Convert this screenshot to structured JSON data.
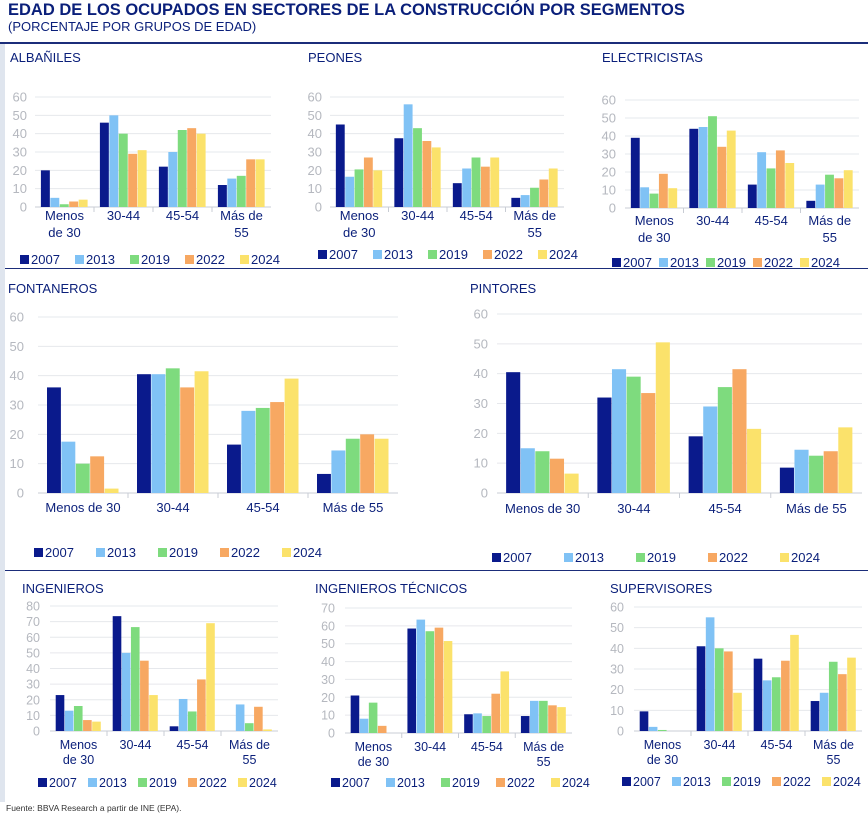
{
  "title": "EDAD DE LOS OCUPADOS EN SECTORES DE LA CONSTRUCCIÓN POR SEGMENTOS",
  "subtitle": "(PORCENTAJE POR GRUPOS DE EDAD)",
  "footer": "Fuente: BBVA Research a partir de INE (EPA).",
  "series_colors": {
    "2007": "#0a1a8c",
    "2013": "#80c2f5",
    "2019": "#7edb7e",
    "2022": "#f7a862",
    "2024": "#fbe26b"
  },
  "chart_data": [
    {
      "type": "bar",
      "title": "ALBAÑILES",
      "ylim": [
        0,
        60
      ],
      "yticks": [
        "0",
        "10",
        "20",
        "30",
        "40",
        "50",
        "60"
      ],
      "categories": [
        [
          "Menos",
          "de 30"
        ],
        [
          "30-44"
        ],
        [
          "45-54"
        ],
        [
          "Más de",
          "55"
        ]
      ],
      "series": [
        {
          "name": "2007",
          "values": [
            20,
            46,
            22,
            12
          ]
        },
        {
          "name": "2013",
          "values": [
            5,
            50,
            30,
            15.5
          ]
        },
        {
          "name": "2019",
          "values": [
            1.5,
            40,
            42,
            17
          ]
        },
        {
          "name": "2022",
          "values": [
            3,
            29,
            43,
            26
          ]
        },
        {
          "name": "2024",
          "values": [
            4,
            31,
            40,
            26
          ]
        }
      ]
    },
    {
      "type": "bar",
      "title": "PEONES",
      "ylim": [
        0,
        60
      ],
      "yticks": [
        "0",
        "10",
        "20",
        "30",
        "40",
        "50",
        "60"
      ],
      "categories": [
        [
          "Menos",
          "de 30"
        ],
        [
          "30-44"
        ],
        [
          "45-54"
        ],
        [
          "Más de",
          "55"
        ]
      ],
      "series": [
        {
          "name": "2007",
          "values": [
            45,
            37.5,
            13,
            5
          ]
        },
        {
          "name": "2013",
          "values": [
            16.5,
            56,
            21,
            6.5
          ]
        },
        {
          "name": "2019",
          "values": [
            20.5,
            43,
            27,
            10.5
          ]
        },
        {
          "name": "2022",
          "values": [
            27,
            36,
            22,
            15
          ]
        },
        {
          "name": "2024",
          "values": [
            20,
            32.5,
            27,
            21
          ]
        }
      ]
    },
    {
      "type": "bar",
      "title": "ELECTRICISTAS",
      "ylim": [
        0,
        60
      ],
      "yticks": [
        "0",
        "10",
        "20",
        "30",
        "40",
        "50",
        "60"
      ],
      "categories": [
        [
          "Menos",
          "de 30"
        ],
        [
          "30-44"
        ],
        [
          "45-54"
        ],
        [
          "Más de",
          "55"
        ]
      ],
      "series": [
        {
          "name": "2007",
          "values": [
            39,
            44,
            13,
            4
          ]
        },
        {
          "name": "2013",
          "values": [
            11.5,
            45,
            31,
            13
          ]
        },
        {
          "name": "2019",
          "values": [
            8,
            51,
            22,
            18.5
          ]
        },
        {
          "name": "2022",
          "values": [
            19,
            34,
            32,
            16.5
          ]
        },
        {
          "name": "2024",
          "values": [
            11,
            43,
            25,
            21
          ]
        }
      ]
    },
    {
      "type": "bar",
      "title": "FONTANEROS",
      "ylim": [
        0,
        60
      ],
      "yticks": [
        "0",
        "10",
        "20",
        "30",
        "40",
        "50",
        "60"
      ],
      "categories": [
        [
          "Menos de 30"
        ],
        [
          "30-44"
        ],
        [
          "45-54"
        ],
        [
          "Más de 55"
        ]
      ],
      "series": [
        {
          "name": "2007",
          "values": [
            36,
            40.5,
            16.5,
            6.5
          ]
        },
        {
          "name": "2013",
          "values": [
            17.5,
            40.5,
            28,
            14.5
          ]
        },
        {
          "name": "2019",
          "values": [
            10,
            42.5,
            29,
            18.5
          ]
        },
        {
          "name": "2022",
          "values": [
            12.5,
            36,
            31,
            20
          ]
        },
        {
          "name": "2024",
          "values": [
            1.5,
            41.5,
            39,
            18.5
          ]
        }
      ]
    },
    {
      "type": "bar",
      "title": "PINTORES",
      "ylim": [
        0,
        60
      ],
      "yticks": [
        "0",
        "10",
        "20",
        "30",
        "40",
        "50",
        "60"
      ],
      "categories": [
        [
          "Menos de 30"
        ],
        [
          "30-44"
        ],
        [
          "45-54"
        ],
        [
          "Más de 55"
        ]
      ],
      "series": [
        {
          "name": "2007",
          "values": [
            40.5,
            32,
            19,
            8.5
          ]
        },
        {
          "name": "2013",
          "values": [
            15,
            41.5,
            29,
            14.5
          ]
        },
        {
          "name": "2019",
          "values": [
            14,
            39,
            35.5,
            12.5
          ]
        },
        {
          "name": "2022",
          "values": [
            11.5,
            33.5,
            41.5,
            14
          ]
        },
        {
          "name": "2024",
          "values": [
            6.5,
            50.5,
            21.5,
            22
          ]
        }
      ]
    },
    {
      "type": "bar",
      "title": "INGENIEROS",
      "ylim": [
        0,
        80
      ],
      "yticks": [
        "0",
        "10",
        "20",
        "30",
        "40",
        "50",
        "60",
        "70",
        "80"
      ],
      "categories": [
        [
          "Menos",
          "de 30"
        ],
        [
          "30-44"
        ],
        [
          "45-54"
        ],
        [
          "Más de",
          "55"
        ]
      ],
      "series": [
        {
          "name": "2007",
          "values": [
            23,
            73.5,
            3,
            0
          ]
        },
        {
          "name": "2013",
          "values": [
            13,
            50,
            20.5,
            17
          ]
        },
        {
          "name": "2019",
          "values": [
            16,
            66.5,
            12.5,
            5
          ]
        },
        {
          "name": "2022",
          "values": [
            7,
            45,
            33,
            15.5
          ]
        },
        {
          "name": "2024",
          "values": [
            6,
            23,
            69,
            1
          ]
        }
      ]
    },
    {
      "type": "bar",
      "title": "INGENIEROS TÉCNICOS",
      "ylim": [
        0,
        70
      ],
      "yticks": [
        "0",
        "10",
        "20",
        "30",
        "40",
        "50",
        "60",
        "70"
      ],
      "categories": [
        [
          "Menos",
          "de 30"
        ],
        [
          "30-44"
        ],
        [
          "45-54"
        ],
        [
          "Más de",
          "55"
        ]
      ],
      "series": [
        {
          "name": "2007",
          "values": [
            21,
            58.5,
            10.5,
            9.5
          ]
        },
        {
          "name": "2013",
          "values": [
            8,
            63.5,
            11,
            18
          ]
        },
        {
          "name": "2019",
          "values": [
            17,
            57,
            9.5,
            18
          ]
        },
        {
          "name": "2022",
          "values": [
            4,
            59,
            22,
            15.5
          ]
        },
        {
          "name": "2024",
          "values": [
            0,
            51.5,
            34.5,
            14.5
          ]
        }
      ]
    },
    {
      "type": "bar",
      "title": "SUPERVISORES",
      "ylim": [
        0,
        60
      ],
      "yticks": [
        "0",
        "10",
        "20",
        "30",
        "40",
        "50",
        "60"
      ],
      "categories": [
        [
          "Menos",
          "de 30"
        ],
        [
          "30-44"
        ],
        [
          "45-54"
        ],
        [
          "Más de",
          "55"
        ]
      ],
      "series": [
        {
          "name": "2007",
          "values": [
            9.5,
            41,
            35,
            14.5
          ]
        },
        {
          "name": "2013",
          "values": [
            2,
            55,
            24.5,
            18.5
          ]
        },
        {
          "name": "2019",
          "values": [
            0.5,
            40,
            26,
            33.5
          ]
        },
        {
          "name": "2022",
          "values": [
            0,
            38.5,
            34,
            27.5
          ]
        },
        {
          "name": "2024",
          "values": [
            0,
            18.5,
            46.5,
            35.5
          ]
        }
      ]
    }
  ]
}
